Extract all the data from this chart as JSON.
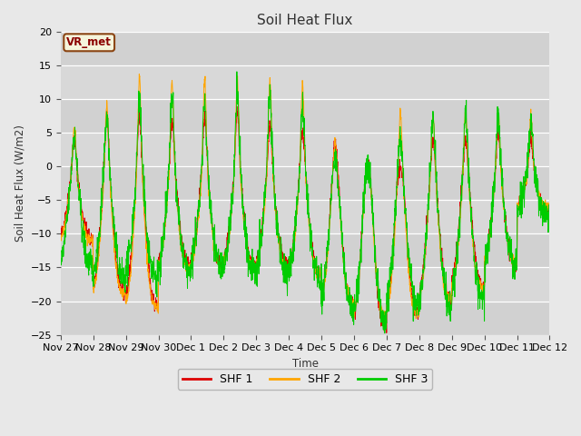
{
  "title": "Soil Heat Flux",
  "ylabel": "Soil Heat Flux (W/m2)",
  "xlabel": "Time",
  "ylim": [
    -25,
    20
  ],
  "yticks": [
    -25,
    -20,
    -15,
    -10,
    -5,
    0,
    5,
    10,
    15,
    20
  ],
  "xtick_labels": [
    "Nov 27",
    "Nov 28",
    "Nov 29",
    "Nov 30",
    "Dec 1",
    "Dec 2",
    "Dec 3",
    "Dec 4",
    "Dec 5",
    "Dec 6",
    "Dec 7",
    "Dec 8",
    "Dec 9",
    "Dec 10",
    "Dec 11",
    "Dec 12"
  ],
  "shf1_color": "#dd0000",
  "shf2_color": "#ffa500",
  "shf3_color": "#00cc00",
  "fig_bg_color": "#e8e8e8",
  "plot_bg_color": "#d8d8d8",
  "legend_label1": "SHF 1",
  "legend_label2": "SHF 2",
  "legend_label3": "SHF 3",
  "vr_met_label": "VR_met",
  "n_days": 15,
  "pts_per_day": 144,
  "seed": 42,
  "day_params": [
    [
      4,
      5.5,
      4.5,
      -11,
      -11,
      -15
    ],
    [
      7.5,
      9.5,
      7.5,
      -19,
      -19,
      -17
    ],
    [
      7.5,
      13.5,
      10.0,
      -21,
      -21,
      -17
    ],
    [
      7.0,
      12.5,
      10.0,
      -15,
      -15,
      -16
    ],
    [
      7.5,
      13.0,
      9.5,
      -15,
      -15,
      -15
    ],
    [
      8.0,
      13.0,
      11.0,
      -15,
      -15,
      -16
    ],
    [
      6.0,
      13.0,
      11.0,
      -15,
      -15,
      -16
    ],
    [
      5.5,
      12.5,
      9.0,
      -16,
      -16,
      -17
    ],
    [
      3.5,
      3.5,
      2.0,
      -21,
      -20,
      -21
    ],
    [
      0.0,
      0.0,
      0.0,
      -24,
      -22,
      -23
    ],
    [
      0.0,
      8.0,
      4.0,
      -22,
      -22,
      -21
    ],
    [
      4.0,
      7.5,
      7.0,
      -20,
      -20,
      -21
    ],
    [
      4.0,
      8.0,
      7.5,
      -18,
      -18,
      -20
    ],
    [
      5.0,
      8.0,
      7.0,
      -15,
      -14,
      -15
    ],
    [
      4.0,
      7.5,
      7.0,
      -7,
      -6,
      -7
    ]
  ]
}
